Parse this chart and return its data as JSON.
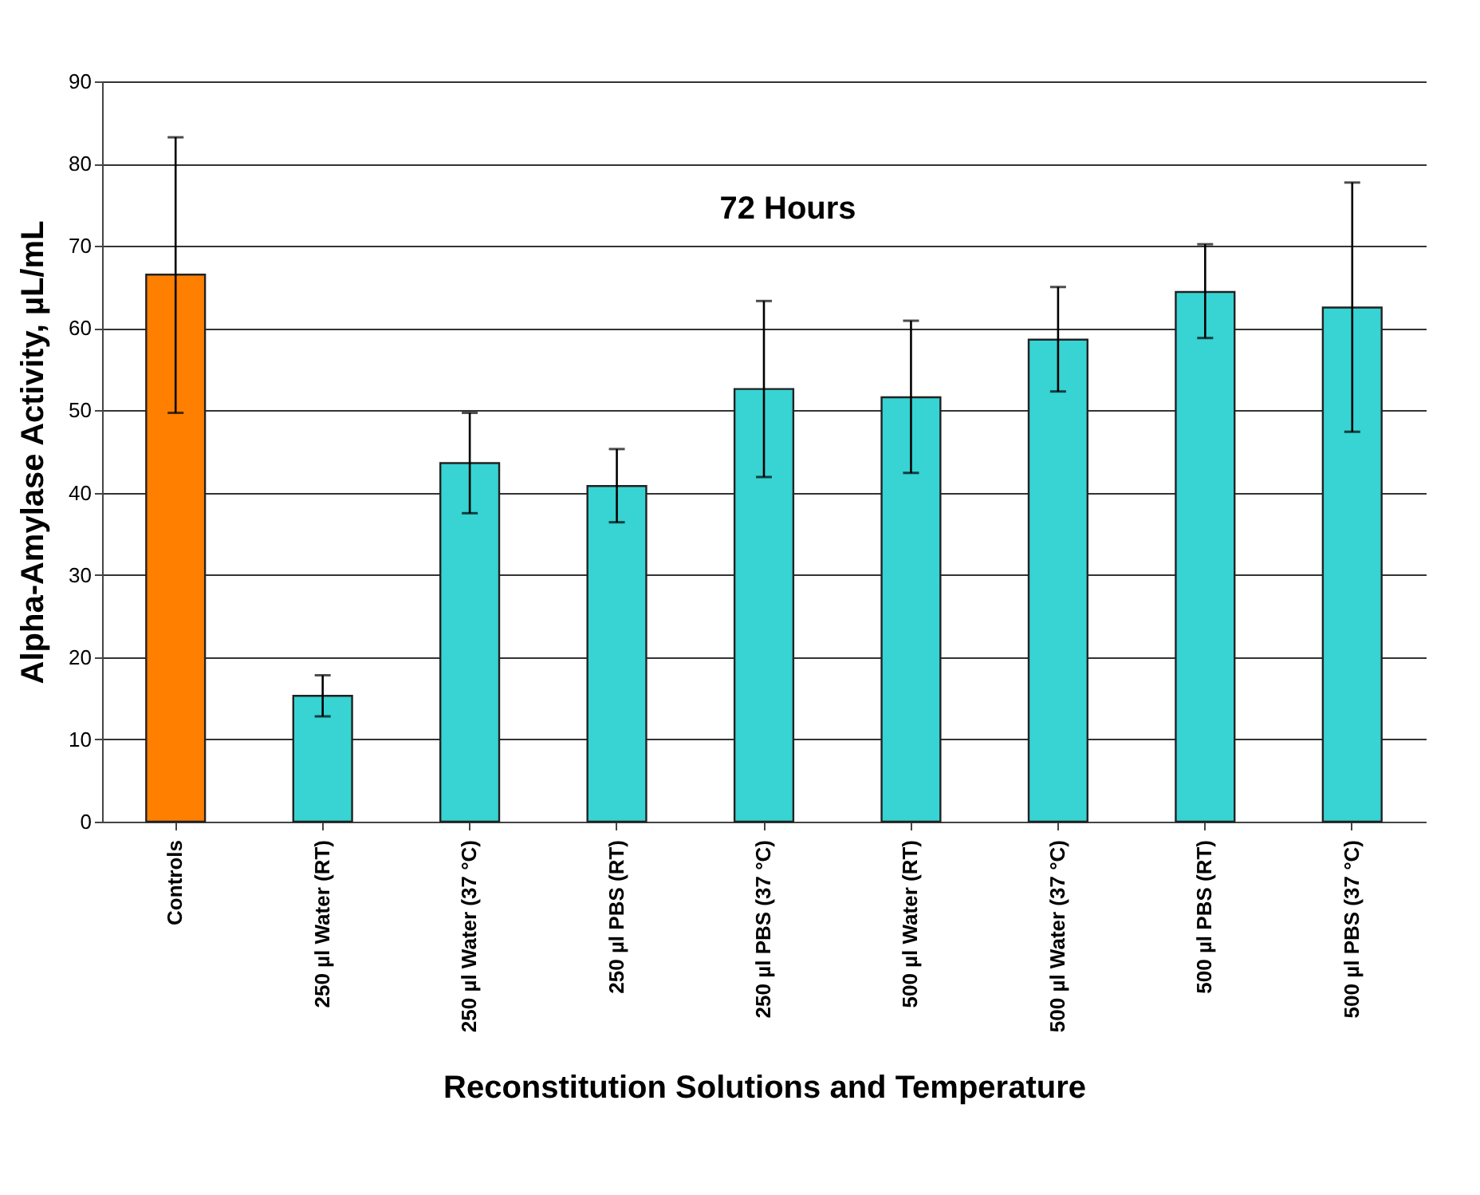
{
  "chart_data": {
    "type": "bar",
    "annotations": [
      "72 Hours"
    ],
    "xlabel": "Reconstitution Solutions and Temperature",
    "ylabel": "Alpha-Amylase Activity, µL/mL",
    "categories": [
      "Controls",
      "250 µl Water (RT)",
      "250 µl Water (37 °C)",
      "250 µl PBS (RT)",
      "250 µl PBS (37 °C)",
      "500 µl Water (RT)",
      "500 µl Water (37 °C)",
      "500 µl PBS (RT)",
      "500 µl PBS (37 °C)"
    ],
    "values": [
      66.5,
      15.3,
      43.6,
      40.8,
      52.6,
      51.6,
      58.6,
      64.4,
      62.5
    ],
    "colors": [
      "#ff8000",
      "#38d3d3",
      "#38d3d3",
      "#38d3d3",
      "#38d3d3",
      "#38d3d3",
      "#38d3d3",
      "#38d3d3",
      "#38d3d3"
    ],
    "errors": [
      [
        49.7,
        83.2
      ],
      [
        12.8,
        17.8
      ],
      [
        37.5,
        49.7
      ],
      [
        36.4,
        45.3
      ],
      [
        41.9,
        63.3
      ],
      [
        42.4,
        60.9
      ],
      [
        52.3,
        65.0
      ],
      [
        58.8,
        70.2
      ],
      [
        47.4,
        77.7
      ]
    ],
    "ylim": [
      0,
      90
    ],
    "yticks": [
      0,
      10,
      20,
      30,
      40,
      50,
      60,
      70,
      80,
      90
    ],
    "grid": "y"
  }
}
